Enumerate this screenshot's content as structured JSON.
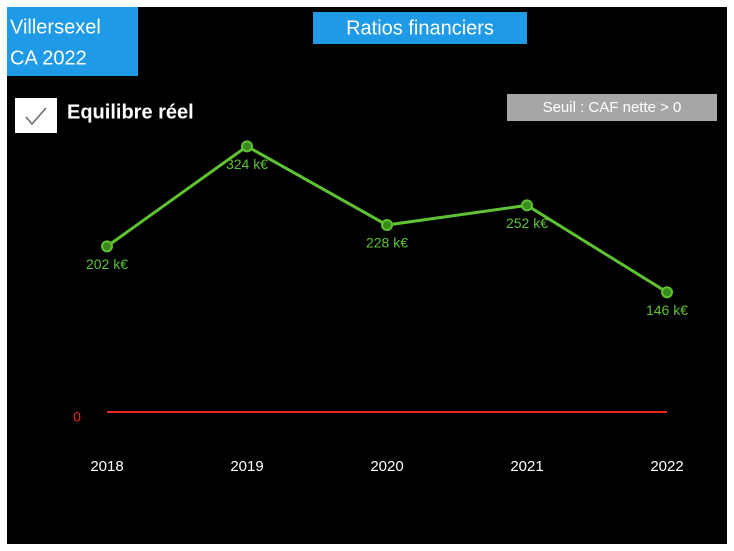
{
  "chart_data": {
    "type": "line",
    "title": "Ratios financiers",
    "annotations": [
      "Villersexel",
      "CA 2022"
    ],
    "legend_label": "Equilibre réel",
    "threshold_note": "Seuil : CAF nette > 0",
    "threshold": 0,
    "threshold_color": "#e8291c",
    "categories": [
      "2018",
      "2019",
      "2020",
      "2021",
      "2022"
    ],
    "series": [
      {
        "name": "Equilibre réel",
        "color": "#5ec232",
        "values": [
          202,
          324,
          228,
          252,
          146
        ],
        "value_labels": [
          "202 k€",
          "324 k€",
          "228 k€",
          "252 k€",
          "146 k€"
        ]
      }
    ],
    "ylim": [
      -60,
      415
    ]
  }
}
